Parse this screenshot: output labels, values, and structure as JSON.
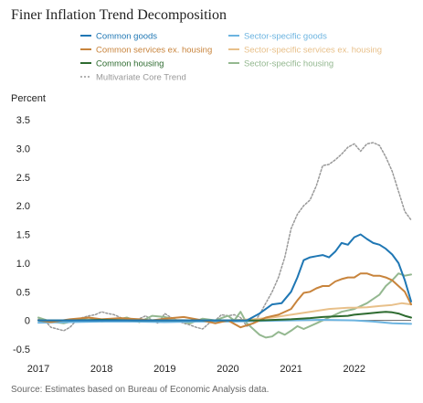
{
  "title": "Finer Inflation Trend Decomposition",
  "y_unit_label": "Percent",
  "source": "Source: Estimates based on Bureau of Economic Analysis data.",
  "chart_data": {
    "type": "line",
    "title": "Finer Inflation Trend Decomposition",
    "xlabel": "",
    "ylabel": "Percent",
    "xlim": [
      2017.0,
      2022.9
    ],
    "ylim": [
      -0.5,
      3.5
    ],
    "x_ticks": [
      "2017",
      "2018",
      "2019",
      "2020",
      "2021",
      "2022"
    ],
    "y_ticks": [
      "3.5",
      "3.0",
      "2.5",
      "2.0",
      "1.5",
      "1.0",
      "0.5",
      "0",
      "-0.5"
    ],
    "grid": false,
    "legend_placement": "top",
    "series": [
      {
        "name": "Common goods",
        "color": "#1f77b4",
        "dash": "solid",
        "x": [
          2017.0,
          2017.5,
          2018.0,
          2018.5,
          2019.0,
          2019.5,
          2020.0,
          2020.3,
          2020.5,
          2020.7,
          2020.85,
          2021.0,
          2021.1,
          2021.2,
          2021.3,
          2021.4,
          2021.5,
          2021.6,
          2021.7,
          2021.8,
          2021.9,
          2022.0,
          2022.1,
          2022.2,
          2022.3,
          2022.4,
          2022.5,
          2022.6,
          2022.7,
          2022.8,
          2022.9
        ],
        "y": [
          0.0,
          0.0,
          0.0,
          0.0,
          0.0,
          0.0,
          0.0,
          0.0,
          0.12,
          0.28,
          0.3,
          0.5,
          0.75,
          1.05,
          1.1,
          1.12,
          1.14,
          1.1,
          1.2,
          1.35,
          1.32,
          1.45,
          1.5,
          1.42,
          1.35,
          1.32,
          1.25,
          1.15,
          1.0,
          0.7,
          0.33
        ]
      },
      {
        "name": "Common services ex. housing",
        "color": "#c8843c",
        "dash": "solid",
        "x": [
          2017.0,
          2017.2,
          2017.5,
          2017.8,
          2018.0,
          2018.3,
          2018.6,
          2018.8,
          2019.0,
          2019.3,
          2019.6,
          2019.8,
          2020.0,
          2020.2,
          2020.4,
          2020.6,
          2020.8,
          2021.0,
          2021.1,
          2021.2,
          2021.3,
          2021.4,
          2021.5,
          2021.6,
          2021.7,
          2021.8,
          2021.9,
          2022.0,
          2022.1,
          2022.2,
          2022.3,
          2022.4,
          2022.5,
          2022.6,
          2022.7,
          2022.8,
          2022.9
        ],
        "y": [
          0.0,
          -0.03,
          0.02,
          0.05,
          0.02,
          0.04,
          0.02,
          0.0,
          0.03,
          0.06,
          0.0,
          -0.05,
          0.0,
          -0.12,
          -0.05,
          0.05,
          0.1,
          0.2,
          0.35,
          0.48,
          0.5,
          0.56,
          0.6,
          0.6,
          0.68,
          0.72,
          0.75,
          0.75,
          0.82,
          0.82,
          0.78,
          0.78,
          0.75,
          0.7,
          0.6,
          0.5,
          0.28
        ]
      },
      {
        "name": "Common housing",
        "color": "#2e6b30",
        "dash": "solid",
        "x": [
          2017.0,
          2017.5,
          2018.0,
          2018.5,
          2019.0,
          2019.5,
          2020.0,
          2020.5,
          2021.0,
          2021.3,
          2021.5,
          2021.7,
          2021.9,
          2022.0,
          2022.2,
          2022.4,
          2022.5,
          2022.6,
          2022.7,
          2022.8,
          2022.9
        ],
        "y": [
          0.0,
          0.0,
          0.01,
          0.0,
          0.0,
          0.0,
          0.0,
          0.0,
          0.02,
          0.04,
          0.06,
          0.07,
          0.08,
          0.1,
          0.12,
          0.14,
          0.15,
          0.14,
          0.12,
          0.08,
          0.05
        ]
      },
      {
        "name": "Sector-specific goods",
        "color": "#6cb4e0",
        "dash": "solid",
        "x": [
          2017.0,
          2017.5,
          2018.0,
          2018.5,
          2019.0,
          2019.5,
          2020.0,
          2020.5,
          2021.0,
          2021.5,
          2022.0,
          2022.3,
          2022.6,
          2022.9
        ],
        "y": [
          -0.04,
          -0.03,
          -0.02,
          -0.02,
          -0.03,
          -0.02,
          -0.02,
          -0.01,
          0.0,
          0.01,
          0.0,
          -0.02,
          -0.05,
          -0.06
        ]
      },
      {
        "name": "Sector-specific services ex. housing",
        "color": "#e8c08a",
        "dash": "solid",
        "x": [
          2017.0,
          2017.5,
          2018.0,
          2018.5,
          2019.0,
          2019.5,
          2020.0,
          2020.4,
          2020.7,
          2021.0,
          2021.3,
          2021.6,
          2021.9,
          2022.0,
          2022.2,
          2022.4,
          2022.6,
          2022.75,
          2022.9
        ],
        "y": [
          0.0,
          0.0,
          0.01,
          0.0,
          0.01,
          0.0,
          0.0,
          0.02,
          0.05,
          0.1,
          0.15,
          0.2,
          0.22,
          0.22,
          0.23,
          0.25,
          0.27,
          0.3,
          0.28
        ]
      },
      {
        "name": "Sector-specific housing",
        "color": "#94b890",
        "dash": "solid",
        "x": [
          2017.0,
          2017.2,
          2017.4,
          2017.6,
          2017.8,
          2018.0,
          2018.2,
          2018.4,
          2018.6,
          2018.8,
          2019.0,
          2019.2,
          2019.4,
          2019.6,
          2019.8,
          2020.0,
          2020.1,
          2020.2,
          2020.3,
          2020.4,
          2020.5,
          2020.6,
          2020.7,
          2020.8,
          2020.9,
          2021.0,
          2021.1,
          2021.2,
          2021.4,
          2021.6,
          2021.8,
          2022.0,
          2022.2,
          2022.4,
          2022.5,
          2022.6,
          2022.7,
          2022.8,
          2022.9
        ],
        "y": [
          0.05,
          -0.02,
          -0.05,
          0.0,
          0.05,
          -0.02,
          0.0,
          0.05,
          -0.03,
          0.08,
          0.06,
          0.0,
          -0.05,
          0.03,
          0.0,
          0.08,
          0.0,
          0.15,
          -0.05,
          -0.15,
          -0.25,
          -0.3,
          -0.28,
          -0.2,
          -0.25,
          -0.18,
          -0.1,
          -0.15,
          -0.05,
          0.05,
          0.15,
          0.2,
          0.3,
          0.45,
          0.6,
          0.7,
          0.82,
          0.78,
          0.8
        ]
      },
      {
        "name": "Multivariate Core Trend",
        "color": "#999999",
        "dash": "dotted",
        "x": [
          2017.0,
          2017.1,
          2017.2,
          2017.3,
          2017.4,
          2017.5,
          2017.6,
          2017.7,
          2017.8,
          2017.9,
          2018.0,
          2018.1,
          2018.2,
          2018.3,
          2018.4,
          2018.5,
          2018.6,
          2018.7,
          2018.8,
          2018.9,
          2019.0,
          2019.1,
          2019.2,
          2019.3,
          2019.4,
          2019.5,
          2019.6,
          2019.7,
          2019.8,
          2019.9,
          2020.0,
          2020.1,
          2020.2,
          2020.3,
          2020.4,
          2020.5,
          2020.6,
          2020.7,
          2020.8,
          2020.9,
          2021.0,
          2021.1,
          2021.2,
          2021.3,
          2021.4,
          2021.5,
          2021.6,
          2021.7,
          2021.8,
          2021.9,
          2022.0,
          2022.1,
          2022.2,
          2022.3,
          2022.4,
          2022.5,
          2022.6,
          2022.7,
          2022.8,
          2022.9
        ],
        "y": [
          0.02,
          0.0,
          -0.12,
          -0.15,
          -0.18,
          -0.12,
          0.0,
          0.05,
          0.08,
          0.1,
          0.15,
          0.12,
          0.1,
          0.05,
          0.0,
          -0.02,
          0.03,
          0.08,
          0.0,
          -0.05,
          0.12,
          0.05,
          0.0,
          -0.05,
          -0.08,
          -0.12,
          -0.15,
          -0.05,
          0.0,
          0.1,
          0.08,
          0.1,
          0.05,
          -0.1,
          -0.05,
          0.1,
          0.3,
          0.5,
          0.75,
          1.1,
          1.6,
          1.85,
          2.0,
          2.1,
          2.35,
          2.7,
          2.72,
          2.8,
          2.9,
          3.02,
          3.08,
          2.95,
          3.08,
          3.1,
          3.05,
          2.85,
          2.6,
          2.25,
          1.9,
          1.75
        ]
      }
    ]
  }
}
